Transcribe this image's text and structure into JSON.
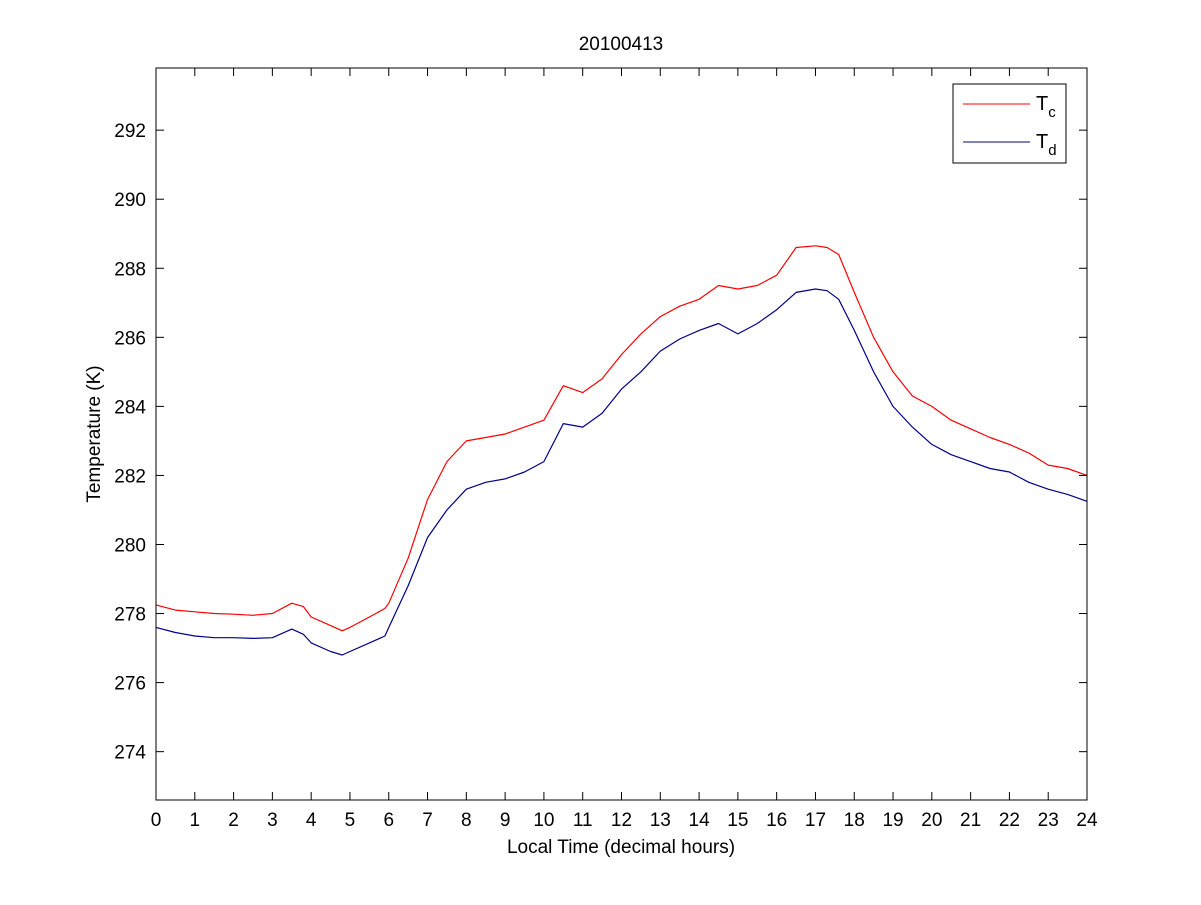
{
  "chart_data": {
    "type": "line",
    "title": "20100413",
    "xlabel": "Local Time (decimal hours)",
    "ylabel": "Temperature (K)",
    "xlim": [
      0,
      24
    ],
    "ylim": [
      272.6,
      293.8
    ],
    "xticks": [
      0,
      1,
      2,
      3,
      4,
      5,
      6,
      7,
      8,
      9,
      10,
      11,
      12,
      13,
      14,
      15,
      16,
      17,
      18,
      19,
      20,
      21,
      22,
      23,
      24
    ],
    "yticks": [
      274,
      276,
      278,
      280,
      282,
      284,
      286,
      288,
      290,
      292
    ],
    "grid": false,
    "legend": "top-right",
    "series": [
      {
        "name": "T",
        "subscript": "c",
        "color": "#ff0000",
        "x": [
          0,
          0.5,
          1,
          1.5,
          2,
          2.5,
          3,
          3.5,
          3.8,
          4,
          4.5,
          4.8,
          5,
          5.5,
          5.9,
          6,
          6.5,
          7,
          7.5,
          8,
          8.5,
          9,
          9.5,
          10,
          10.5,
          11,
          11.5,
          12,
          12.5,
          13,
          13.5,
          14,
          14.5,
          15,
          15.5,
          16,
          16.5,
          17,
          17.3,
          17.6,
          18,
          18.5,
          19,
          19.5,
          20,
          20.5,
          21,
          21.5,
          22,
          22.5,
          23,
          23.5,
          24
        ],
        "y": [
          278.25,
          278.1,
          278.05,
          278.0,
          277.98,
          277.95,
          278.0,
          278.3,
          278.2,
          277.9,
          277.65,
          277.5,
          277.6,
          277.9,
          278.15,
          278.3,
          279.6,
          281.3,
          282.4,
          283.0,
          283.1,
          283.2,
          283.4,
          283.6,
          284.6,
          284.4,
          284.8,
          285.5,
          286.1,
          286.6,
          286.9,
          287.1,
          287.5,
          287.4,
          287.5,
          287.8,
          288.6,
          288.65,
          288.6,
          288.4,
          287.3,
          286.0,
          285.0,
          284.3,
          284.0,
          283.6,
          283.35,
          283.1,
          282.9,
          282.65,
          282.3,
          282.2,
          282.0
        ]
      },
      {
        "name": "T",
        "subscript": "d",
        "color": "#00008b",
        "x": [
          0,
          0.5,
          1,
          1.5,
          2,
          2.5,
          3,
          3.5,
          3.8,
          4,
          4.5,
          4.8,
          5,
          5.5,
          5.9,
          6,
          6.5,
          7,
          7.5,
          8,
          8.5,
          9,
          9.5,
          10,
          10.5,
          11,
          11.5,
          12,
          12.5,
          13,
          13.5,
          14,
          14.5,
          15,
          15.5,
          16,
          16.5,
          17,
          17.3,
          17.6,
          18,
          18.5,
          19,
          19.5,
          20,
          20.5,
          21,
          21.5,
          22,
          22.5,
          23,
          23.5,
          24
        ],
        "y": [
          277.6,
          277.45,
          277.35,
          277.3,
          277.3,
          277.28,
          277.3,
          277.55,
          277.4,
          277.15,
          276.9,
          276.8,
          276.9,
          277.15,
          277.35,
          277.6,
          278.8,
          280.2,
          281.0,
          281.6,
          281.8,
          281.9,
          282.1,
          282.4,
          283.5,
          283.4,
          283.8,
          284.5,
          285.0,
          285.6,
          285.95,
          286.2,
          286.4,
          286.1,
          286.4,
          286.8,
          287.3,
          287.4,
          287.35,
          287.1,
          286.2,
          285.0,
          284.0,
          283.4,
          282.9,
          282.6,
          282.4,
          282.2,
          282.1,
          281.8,
          281.6,
          281.45,
          281.25
        ]
      }
    ]
  }
}
